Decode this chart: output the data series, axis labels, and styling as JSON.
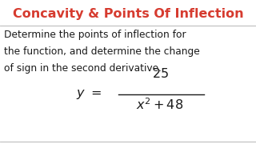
{
  "title": "Concavity & Points Of Inflection",
  "title_color": "#d63b2f",
  "body_text_line1": "Determine the points of inflection for",
  "body_text_line2": "the function, and determine the change",
  "body_text_line3": "of sign in the second derivative.",
  "background_color": "#ffffff",
  "text_color": "#1a1a1a",
  "title_fontsize": 11.5,
  "body_fontsize": 8.8,
  "formula_fontsize": 11.5
}
